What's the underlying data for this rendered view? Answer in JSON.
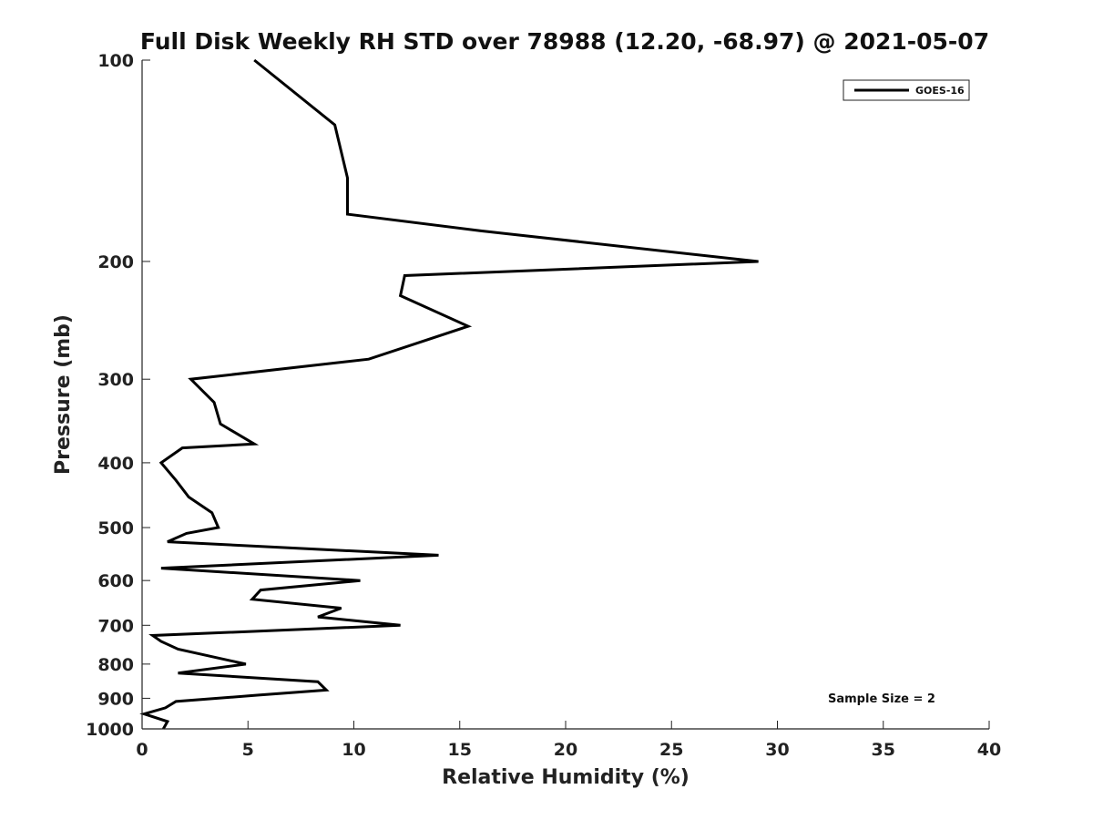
{
  "chart_data": {
    "type": "line",
    "title": "Full Disk Weekly RH STD over 78988 (12.20, -68.97) @ 2021-05-07",
    "xlabel": "Relative Humidity (%)",
    "ylabel": "Pressure (mb)",
    "xlim": [
      0,
      40
    ],
    "ylim": [
      100,
      1000
    ],
    "y_scale": "log",
    "y_reversed": true,
    "grid": false,
    "x_ticks": [
      0,
      5,
      10,
      15,
      20,
      25,
      30,
      35,
      40
    ],
    "x_tick_labels": [
      "0",
      "5",
      "10",
      "15",
      "20",
      "25",
      "30",
      "35",
      "40"
    ],
    "y_ticks": [
      100,
      200,
      300,
      400,
      500,
      600,
      700,
      800,
      900,
      1000
    ],
    "y_tick_labels": [
      "100",
      "200",
      "300",
      "400",
      "500",
      "600",
      "700",
      "800",
      "900",
      "1000"
    ],
    "legend": {
      "placement": "top-right",
      "entries": [
        "GOES-16"
      ]
    },
    "annotation": "Sample Size = 2",
    "series": [
      {
        "name": "GOES-16",
        "color": "#000000",
        "points": [
          [
            5.3,
            100
          ],
          [
            9.1,
            125
          ],
          [
            9.7,
            150
          ],
          [
            9.7,
            170
          ],
          [
            16.0,
            180
          ],
          [
            29.1,
            200
          ],
          [
            12.4,
            210
          ],
          [
            12.2,
            225
          ],
          [
            15.4,
            250
          ],
          [
            10.7,
            280
          ],
          [
            2.3,
            300
          ],
          [
            3.4,
            325
          ],
          [
            3.7,
            350
          ],
          [
            5.3,
            375
          ],
          [
            1.9,
            380
          ],
          [
            0.9,
            400
          ],
          [
            1.6,
            425
          ],
          [
            2.2,
            450
          ],
          [
            3.3,
            475
          ],
          [
            3.6,
            500
          ],
          [
            2.1,
            510
          ],
          [
            1.2,
            525
          ],
          [
            14.0,
            550
          ],
          [
            0.9,
            575
          ],
          [
            10.3,
            600
          ],
          [
            5.6,
            620
          ],
          [
            5.2,
            640
          ],
          [
            9.4,
            660
          ],
          [
            8.3,
            680
          ],
          [
            12.2,
            700
          ],
          [
            0.5,
            725
          ],
          [
            0.9,
            740
          ],
          [
            1.7,
            760
          ],
          [
            4.9,
            800
          ],
          [
            1.7,
            825
          ],
          [
            8.3,
            850
          ],
          [
            8.7,
            875
          ],
          [
            5.5,
            890
          ],
          [
            1.6,
            910
          ],
          [
            1.1,
            930
          ],
          [
            0.1,
            950
          ],
          [
            1.2,
            975
          ],
          [
            1.0,
            1000
          ]
        ]
      }
    ]
  }
}
